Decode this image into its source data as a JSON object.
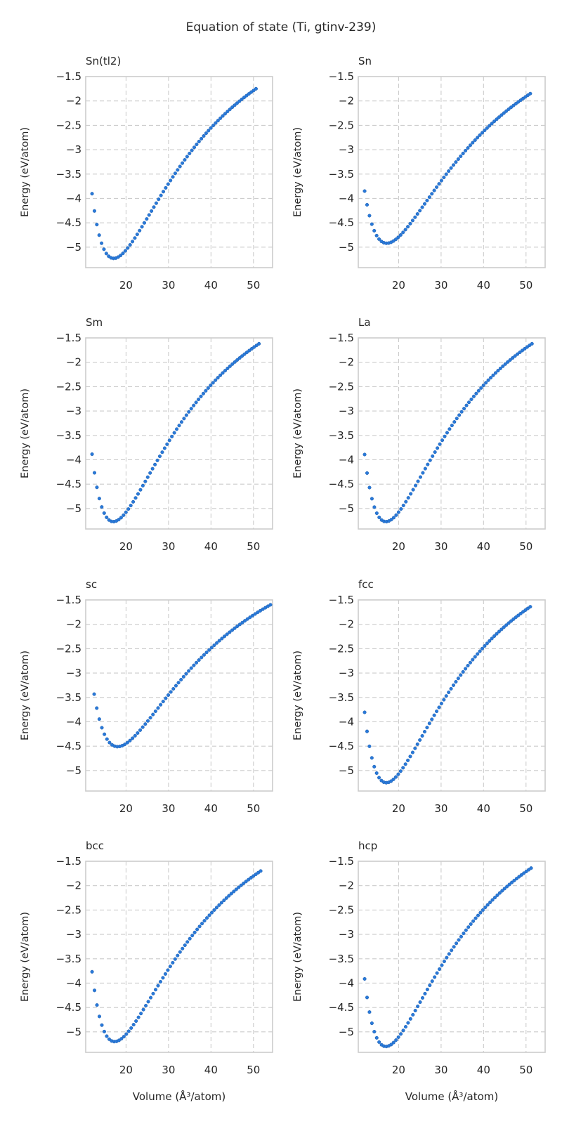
{
  "figure": {
    "title": "Equation of state (Ti, gtinv-239)"
  },
  "chart_data": [
    {
      "type": "scatter",
      "title": "Sn(tl2)",
      "xlabel": "",
      "ylabel": "Energy (eV/atom)",
      "xlim": [
        10.5,
        54.5
      ],
      "ylim": [
        -5.42,
        -1.5
      ],
      "xticks": [
        20,
        30,
        40,
        50
      ],
      "yticks": [
        -1.5,
        -2.0,
        -2.5,
        -3.0,
        -3.5,
        -4.0,
        -4.5,
        -5.0
      ],
      "grid": true,
      "point_color": "#2979d9",
      "v0": 17.1,
      "e0": -5.23,
      "vmin": 12.0,
      "vmax": 50.6,
      "emax": -1.75,
      "n": 70
    },
    {
      "type": "scatter",
      "title": "Sn",
      "xlabel": "",
      "ylabel": "Energy (eV/atom)",
      "xlim": [
        10.5,
        54.5
      ],
      "ylim": [
        -5.42,
        -1.5
      ],
      "xticks": [
        20,
        30,
        40,
        50
      ],
      "yticks": [
        -1.5,
        -2.0,
        -2.5,
        -3.0,
        -3.5,
        -4.0,
        -4.5,
        -5.0
      ],
      "grid": true,
      "point_color": "#2979d9",
      "v0": 17.2,
      "e0": -4.92,
      "vmin": 12.0,
      "vmax": 51.0,
      "emax": -1.85,
      "n": 70
    },
    {
      "type": "scatter",
      "title": "Sm",
      "xlabel": "",
      "ylabel": "Energy (eV/atom)",
      "xlim": [
        10.5,
        54.5
      ],
      "ylim": [
        -5.42,
        -1.5
      ],
      "xticks": [
        20,
        30,
        40,
        50
      ],
      "yticks": [
        -1.5,
        -2.0,
        -2.5,
        -3.0,
        -3.5,
        -4.0,
        -4.5,
        -5.0
      ],
      "grid": true,
      "point_color": "#2979d9",
      "v0": 17.0,
      "e0": -5.27,
      "vmin": 12.0,
      "vmax": 51.3,
      "emax": -1.62,
      "n": 70
    },
    {
      "type": "scatter",
      "title": "La",
      "xlabel": "",
      "ylabel": "Energy (eV/atom)",
      "xlim": [
        10.5,
        54.5
      ],
      "ylim": [
        -5.42,
        -1.5
      ],
      "xticks": [
        20,
        30,
        40,
        50
      ],
      "yticks": [
        -1.5,
        -2.0,
        -2.5,
        -3.0,
        -3.5,
        -4.0,
        -4.5,
        -5.0
      ],
      "grid": true,
      "point_color": "#2979d9",
      "v0": 17.0,
      "e0": -5.27,
      "vmin": 12.0,
      "vmax": 51.4,
      "emax": -1.62,
      "n": 70
    },
    {
      "type": "scatter",
      "title": "sc",
      "xlabel": "",
      "ylabel": "Energy (eV/atom)",
      "xlim": [
        10.5,
        54.5
      ],
      "ylim": [
        -5.42,
        -1.5
      ],
      "xticks": [
        20,
        30,
        40,
        50
      ],
      "yticks": [
        -1.5,
        -2.0,
        -2.5,
        -3.0,
        -3.5,
        -4.0,
        -4.5,
        -5.0
      ],
      "grid": true,
      "point_color": "#2979d9",
      "v0": 18.0,
      "e0": -4.51,
      "vmin": 12.5,
      "vmax": 54.0,
      "emax": -1.6,
      "n": 70
    },
    {
      "type": "scatter",
      "title": "fcc",
      "xlabel": "",
      "ylabel": "Energy (eV/atom)",
      "xlim": [
        10.5,
        54.5
      ],
      "ylim": [
        -5.42,
        -1.5
      ],
      "xticks": [
        20,
        30,
        40,
        50
      ],
      "yticks": [
        -1.5,
        -2.0,
        -2.5,
        -3.0,
        -3.5,
        -4.0,
        -4.5,
        -5.0
      ],
      "grid": true,
      "point_color": "#2979d9",
      "v0": 17.1,
      "e0": -5.25,
      "vmin": 12.0,
      "vmax": 51.0,
      "emax": -1.64,
      "n": 70
    },
    {
      "type": "scatter",
      "title": "bcc",
      "xlabel": "Volume (Å³/atom)",
      "ylabel": "Energy (eV/atom)",
      "xlim": [
        10.5,
        54.5
      ],
      "ylim": [
        -5.42,
        -1.5
      ],
      "xticks": [
        20,
        30,
        40,
        50
      ],
      "yticks": [
        -1.5,
        -2.0,
        -2.5,
        -3.0,
        -3.5,
        -4.0,
        -4.5,
        -5.0
      ],
      "grid": true,
      "point_color": "#2979d9",
      "v0": 17.3,
      "e0": -5.2,
      "vmin": 12.0,
      "vmax": 51.7,
      "emax": -1.7,
      "n": 70
    },
    {
      "type": "scatter",
      "title": "hcp",
      "xlabel": "Volume (Å³/atom)",
      "ylabel": "Energy (eV/atom)",
      "xlim": [
        10.5,
        54.5
      ],
      "ylim": [
        -5.42,
        -1.5
      ],
      "xticks": [
        20,
        30,
        40,
        50
      ],
      "yticks": [
        -1.5,
        -2.0,
        -2.5,
        -3.0,
        -3.5,
        -4.0,
        -4.5,
        -5.0
      ],
      "grid": true,
      "point_color": "#2979d9",
      "v0": 17.0,
      "e0": -5.3,
      "vmin": 12.0,
      "vmax": 51.2,
      "emax": -1.64,
      "n": 70
    }
  ]
}
